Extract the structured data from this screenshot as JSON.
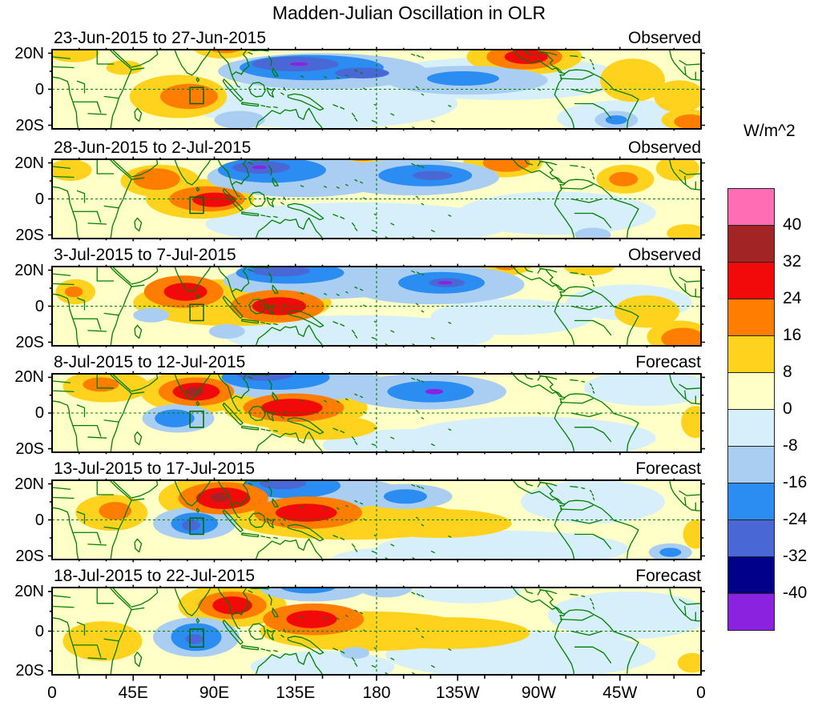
{
  "title": "Madden-Julian Oscillation in OLR",
  "colorbar": {
    "title": "W/m^2",
    "tick_labels": [
      "40",
      "32",
      "24",
      "16",
      "8",
      "0",
      "-8",
      "-16",
      "-24",
      "-32",
      "-40"
    ],
    "colors_top_to_bottom": [
      "#FF6EB4",
      "#A22425",
      "#F20A0A",
      "#FF7D00",
      "#FFD21E",
      "#FFFFC8",
      "#D6EFFA",
      "#A9CEF2",
      "#2B8CF2",
      "#4A67D6",
      "#00008B",
      "#8B22E0"
    ]
  },
  "x_axis_labels": [
    "0",
    "45E",
    "90E",
    "135E",
    "180",
    "135W",
    "90W",
    "45W",
    "0"
  ],
  "y_axis_labels": [
    "20N",
    "0",
    "20S"
  ],
  "chart_data": {
    "type": "heatmap",
    "subtype": "filled_contour_longitude_latitude_maps",
    "units": "W/m^2",
    "lon_domain": [
      0,
      360
    ],
    "lat_domain": [
      -22,
      22
    ],
    "contour_levels": [
      -40,
      -32,
      -24,
      -16,
      -8,
      0,
      8,
      16,
      24,
      32,
      40
    ],
    "legend_position": "right",
    "grid": false,
    "equator_dashed_line": true,
    "dateline_dashed_line_lon": 180,
    "reference_box": {
      "lon_min": 76.5,
      "lon_max": 84,
      "lat_max": 1,
      "lat_min": -8
    },
    "palette": {
      "bg": "#FFFFC8",
      "pb": "#D6EFFA",
      "lb": "#A9CEF2",
      "db": "#2B8CF2",
      "rb": "#4A67D6",
      "nb": "#00008B",
      "vi": "#8B22E0",
      "gd": "#FFD21E",
      "or": "#FF7D00",
      "rd": "#F20A0A",
      "dr": "#A22425",
      "pk": "#FF6EB4"
    },
    "panels": [
      {
        "date_range": "23-Jun-2015 to 27-Jun-2015",
        "source": "Observed",
        "anomaly_blobs": [
          [
            150,
            -8,
            75,
            14,
            "pb"
          ],
          [
            250,
            6,
            70,
            12,
            "pb"
          ],
          [
            320,
            -16,
            40,
            10,
            "pb"
          ],
          [
            12,
            20,
            14,
            5,
            "gd"
          ],
          [
            40,
            12,
            10,
            4,
            "gd"
          ],
          [
            70,
            -4,
            27,
            12,
            "gd"
          ],
          [
            95,
            25,
            18,
            8,
            "gd"
          ],
          [
            262,
            18,
            32,
            10,
            "gd"
          ],
          [
            322,
            5,
            18,
            12,
            "gd"
          ],
          [
            348,
            -4,
            14,
            9,
            "gd"
          ],
          [
            352,
            -17,
            14,
            6,
            "gd"
          ],
          [
            104,
            -17,
            14,
            5,
            "lb"
          ],
          [
            150,
            10,
            58,
            10,
            "lb"
          ],
          [
            230,
            5,
            45,
            8,
            "lb"
          ],
          [
            313,
            -17,
            12,
            5,
            "lb"
          ],
          [
            144,
            12,
            40,
            7,
            "db"
          ],
          [
            228,
            6,
            20,
            4,
            "db"
          ],
          [
            313,
            -17,
            6,
            2.5,
            "db"
          ],
          [
            135,
            14,
            24,
            4,
            "rb"
          ],
          [
            172,
            9,
            15,
            3,
            "rb"
          ],
          [
            137,
            14,
            5,
            1,
            "vi"
          ],
          [
            76,
            -4,
            16,
            7,
            "or"
          ],
          [
            96,
            26,
            12,
            6,
            "or"
          ],
          [
            262,
            18,
            21,
            7,
            "or"
          ],
          [
            354,
            -18,
            9,
            4,
            "or"
          ],
          [
            263,
            18,
            12,
            4,
            "rd"
          ]
        ]
      },
      {
        "date_range": "28-Jun-2015 to 2-Jul-2015",
        "source": "Observed",
        "anomaly_blobs": [
          [
            170,
            -14,
            85,
            12,
            "pb"
          ],
          [
            280,
            -8,
            55,
            12,
            "pb"
          ],
          [
            10,
            16,
            12,
            6,
            "gd"
          ],
          [
            60,
            10,
            22,
            9,
            "gd"
          ],
          [
            82,
            0,
            30,
            11,
            "gd"
          ],
          [
            171,
            25,
            20,
            7,
            "gd"
          ],
          [
            250,
            20,
            22,
            8,
            "gd"
          ],
          [
            318,
            11,
            16,
            8,
            "gd"
          ],
          [
            347,
            17,
            12,
            7,
            "gd"
          ],
          [
            352,
            -19,
            11,
            5,
            "gd"
          ],
          [
            138,
            12,
            52,
            11,
            "lb"
          ],
          [
            200,
            12,
            48,
            10,
            "lb"
          ],
          [
            300,
            -20,
            10,
            4,
            "lb"
          ],
          [
            122,
            16,
            30,
            7,
            "db"
          ],
          [
            207,
            13,
            26,
            6,
            "db"
          ],
          [
            116,
            17.5,
            16,
            3.5,
            "rb"
          ],
          [
            211,
            13,
            11,
            2.5,
            "rb"
          ],
          [
            115,
            17.5,
            4,
            1,
            "vi"
          ],
          [
            58,
            11,
            13,
            6,
            "or"
          ],
          [
            86,
            0,
            21,
            7,
            "or"
          ],
          [
            172,
            25,
            12,
            4,
            "or"
          ],
          [
            252,
            20,
            13,
            5,
            "or"
          ],
          [
            317,
            11,
            8,
            4,
            "or"
          ],
          [
            90,
            -0.5,
            12,
            4,
            "rd"
          ]
        ]
      },
      {
        "date_range": "3-Jul-2015 to 7-Jul-2015",
        "source": "Observed",
        "anomaly_blobs": [
          [
            170,
            -16,
            75,
            11,
            "pb"
          ],
          [
            255,
            -6,
            45,
            10,
            "pb"
          ],
          [
            320,
            2,
            35,
            10,
            "pb"
          ],
          [
            13,
            8,
            11,
            7,
            "gd"
          ],
          [
            100,
            2,
            55,
            13,
            "gd"
          ],
          [
            252,
            23,
            14,
            6,
            "gd"
          ],
          [
            298,
            22,
            14,
            5,
            "gd"
          ],
          [
            330,
            -3,
            18,
            9,
            "gd"
          ],
          [
            348,
            -17,
            18,
            9,
            "gd"
          ],
          [
            55,
            -5,
            10,
            4,
            "lb"
          ],
          [
            97,
            -14,
            10,
            4,
            "lb"
          ],
          [
            150,
            14,
            55,
            10,
            "lb"
          ],
          [
            212,
            12,
            50,
            11,
            "lb"
          ],
          [
            132,
            18.5,
            30,
            6,
            "db"
          ],
          [
            216,
            13,
            24,
            6,
            "db"
          ],
          [
            127,
            19.5,
            16,
            3,
            "rb"
          ],
          [
            219,
            13,
            10,
            2.5,
            "rb"
          ],
          [
            218,
            13,
            4,
            1,
            "vi"
          ],
          [
            12,
            8,
            5,
            3,
            "or"
          ],
          [
            73,
            8,
            22,
            9,
            "or"
          ],
          [
            125,
            0,
            26,
            9,
            "or"
          ],
          [
            252,
            23,
            7,
            3,
            "or"
          ],
          [
            350,
            -18,
            12,
            6,
            "or"
          ],
          [
            74,
            8,
            12,
            5,
            "rd"
          ],
          [
            126,
            0,
            15,
            5,
            "rd"
          ]
        ]
      },
      {
        "date_range": "8-Jul-2015 to 12-Jul-2015",
        "source": "Forecast",
        "anomaly_blobs": [
          [
            265,
            -14,
            70,
            12,
            "pb"
          ],
          [
            200,
            -18,
            50,
            9,
            "pb"
          ],
          [
            330,
            14,
            35,
            10,
            "pb"
          ],
          [
            30,
            15,
            24,
            9,
            "gd"
          ],
          [
            80,
            12,
            31,
            12,
            "gd"
          ],
          [
            135,
            3,
            40,
            12,
            "gd"
          ],
          [
            150,
            -8,
            30,
            7,
            "gd"
          ],
          [
            357,
            -5,
            8,
            9,
            "gd"
          ],
          [
            140,
            16,
            48,
            9,
            "lb"
          ],
          [
            70,
            -3,
            20,
            8,
            "lb"
          ],
          [
            207,
            12,
            45,
            10,
            "lb"
          ],
          [
            124,
            20,
            30,
            7,
            "db"
          ],
          [
            68,
            -3,
            11,
            5,
            "db"
          ],
          [
            210,
            12,
            24,
            6,
            "db"
          ],
          [
            118,
            22,
            16,
            4,
            "rb"
          ],
          [
            212,
            12,
            5,
            1.5,
            "vi"
          ],
          [
            27,
            16,
            10,
            4,
            "or"
          ],
          [
            80,
            12,
            21,
            8,
            "or"
          ],
          [
            134,
            3,
            28,
            8,
            "or"
          ],
          [
            80,
            12,
            13,
            5,
            "rd"
          ],
          [
            133,
            3,
            17,
            5,
            "rd"
          ],
          [
            79,
            12,
            5,
            2.5,
            "dr"
          ]
        ]
      },
      {
        "date_range": "13-Jul-2015 to 17-Jul-2015",
        "source": "Forecast",
        "anomaly_blobs": [
          [
            250,
            -16,
            70,
            10,
            "pb"
          ],
          [
            300,
            10,
            40,
            12,
            "pb"
          ],
          [
            195,
            -22,
            40,
            7,
            "pb"
          ],
          [
            33,
            4,
            20,
            10,
            "gd"
          ],
          [
            95,
            12,
            36,
            13,
            "gd"
          ],
          [
            165,
            0,
            65,
            11,
            "gd"
          ],
          [
            215,
            -2,
            40,
            8,
            "gd"
          ],
          [
            357,
            -8,
            7,
            8,
            "gd"
          ],
          [
            150,
            15,
            45,
            9,
            "lb"
          ],
          [
            79,
            -2,
            23,
            9,
            "lb"
          ],
          [
            196,
            13,
            26,
            7,
            "lb"
          ],
          [
            343,
            -18,
            12,
            5,
            "lb"
          ],
          [
            133,
            19,
            27,
            7,
            "db"
          ],
          [
            79,
            -2,
            13,
            6,
            "db"
          ],
          [
            196,
            13,
            12,
            4,
            "db"
          ],
          [
            343,
            -18,
            6,
            2.5,
            "db"
          ],
          [
            128,
            20.5,
            13,
            3.5,
            "rb"
          ],
          [
            77,
            -3,
            5,
            3,
            "rb"
          ],
          [
            35,
            5,
            9,
            5,
            "or"
          ],
          [
            95,
            12,
            25,
            9,
            "or"
          ],
          [
            142,
            4,
            30,
            9,
            "or"
          ],
          [
            95,
            12,
            15,
            6,
            "rd"
          ],
          [
            141,
            4,
            17,
            5,
            "rd"
          ],
          [
            93,
            12.5,
            5,
            2.5,
            "dr"
          ]
        ]
      },
      {
        "date_range": "18-Jul-2015 to 22-Jul-2015",
        "source": "Forecast",
        "anomaly_blobs": [
          [
            260,
            -12,
            75,
            12,
            "pb"
          ],
          [
            320,
            8,
            45,
            12,
            "pb"
          ],
          [
            150,
            -18,
            40,
            8,
            "pb"
          ],
          [
            230,
            20,
            30,
            6,
            "pb"
          ],
          [
            28,
            -5,
            22,
            10,
            "gd"
          ],
          [
            100,
            13,
            30,
            11,
            "gd"
          ],
          [
            175,
            0,
            60,
            10,
            "gd"
          ],
          [
            220,
            -1,
            45,
            8,
            "gd"
          ],
          [
            355,
            -16,
            8,
            5,
            "gd"
          ],
          [
            80,
            -3,
            24,
            10,
            "lb"
          ],
          [
            145,
            22,
            30,
            7,
            "lb"
          ],
          [
            185,
            22,
            15,
            5,
            "lb"
          ],
          [
            168,
            -11,
            8,
            3,
            "lb"
          ],
          [
            80,
            -3,
            14,
            7,
            "db"
          ],
          [
            142,
            23,
            16,
            4,
            "db"
          ],
          [
            79,
            -4,
            5,
            2.5,
            "rb"
          ],
          [
            100,
            13,
            19,
            7,
            "or"
          ],
          [
            145,
            6,
            28,
            8,
            "or"
          ],
          [
            100,
            13,
            11,
            4.5,
            "rd"
          ],
          [
            144,
            6,
            14,
            4.5,
            "rd"
          ]
        ]
      }
    ]
  },
  "map": {
    "coast_color": "#007F00",
    "frame_color": "#000000"
  }
}
